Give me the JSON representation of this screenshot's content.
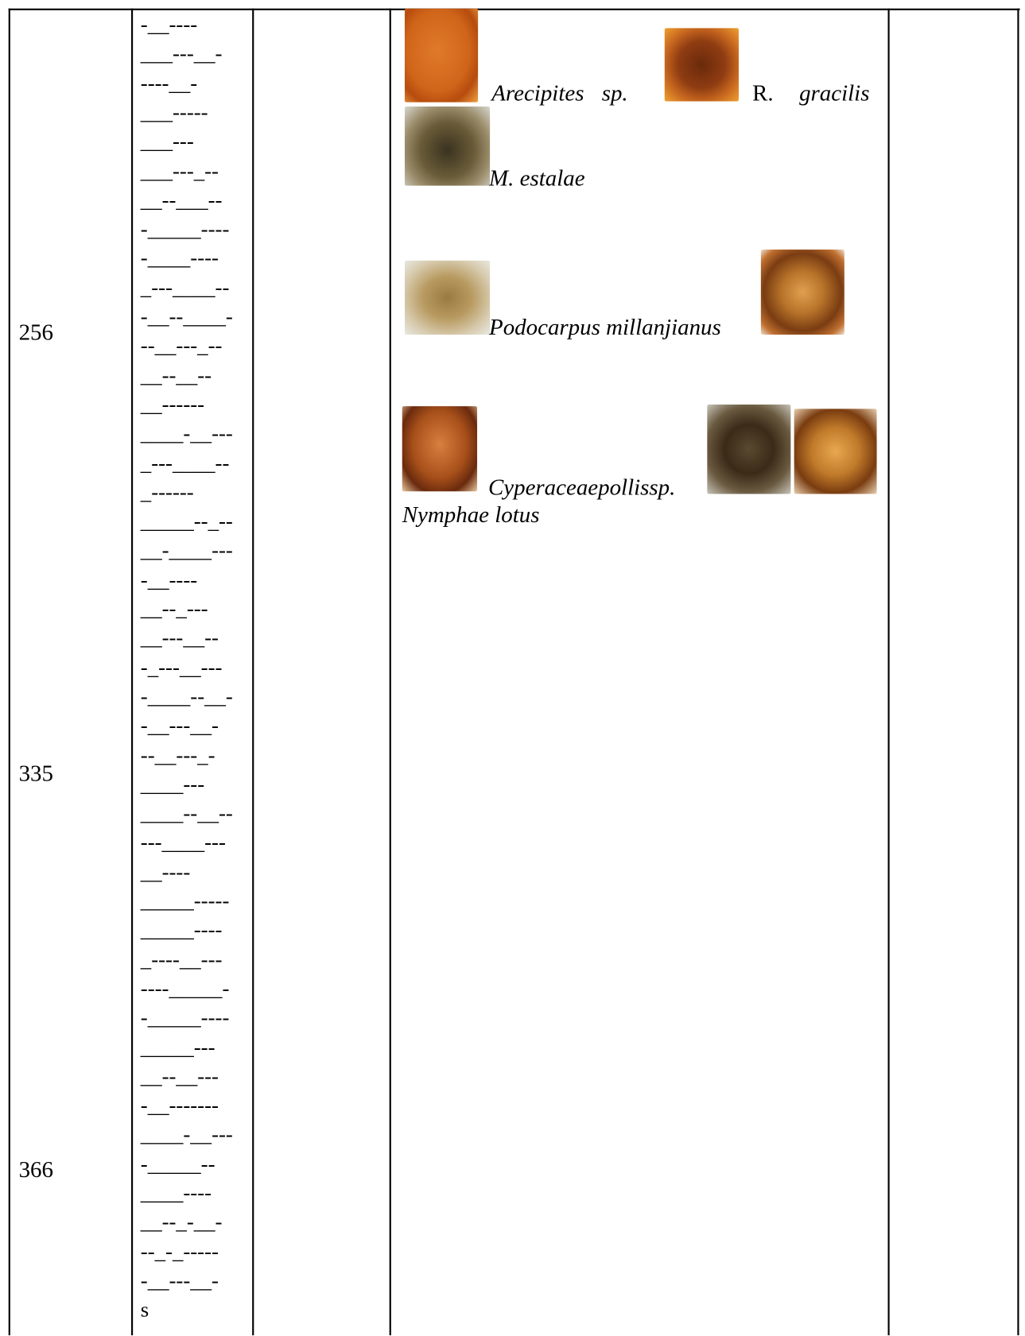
{
  "table": {
    "depths": [
      "256",
      "335",
      "366"
    ],
    "lithology_lines": [
      "-__----",
      "___---__-",
      "----__-",
      "___-----",
      "___---",
      "___---_--",
      "__--___--",
      "-_____----",
      "-____----",
      "_---____--",
      "-__--____-",
      "--__---_--",
      "__--__--",
      "__------",
      "____-__---",
      "_---____--",
      "_------",
      "_____--_--",
      "__-____---",
      "-__----",
      "__--_---",
      "__---__--",
      "-_---__---",
      "-____--__-",
      "-__---__-",
      "--__---_-",
      "____---",
      "____--__--",
      "---____---",
      "__----",
      "_____-----",
      "_____----",
      "_----__---",
      "----_____-",
      "-_____----",
      "_____---",
      "__--__---",
      "-__-------",
      "____-__---",
      "-_____--",
      "____----",
      "__--_-__-",
      "--_-_-----",
      "-__---__-",
      "s"
    ],
    "species": {
      "arecipites": "Arecipites sp.",
      "r_gracilis_genus": "R.",
      "r_gracilis_species": "gracilis",
      "m_estalae": "M. estalae",
      "podocarpus": "Podocarpus millanjianus",
      "cyperaceae": "Cyperaceaepollissp.",
      "nymphae": "Nymphae lotus"
    }
  }
}
